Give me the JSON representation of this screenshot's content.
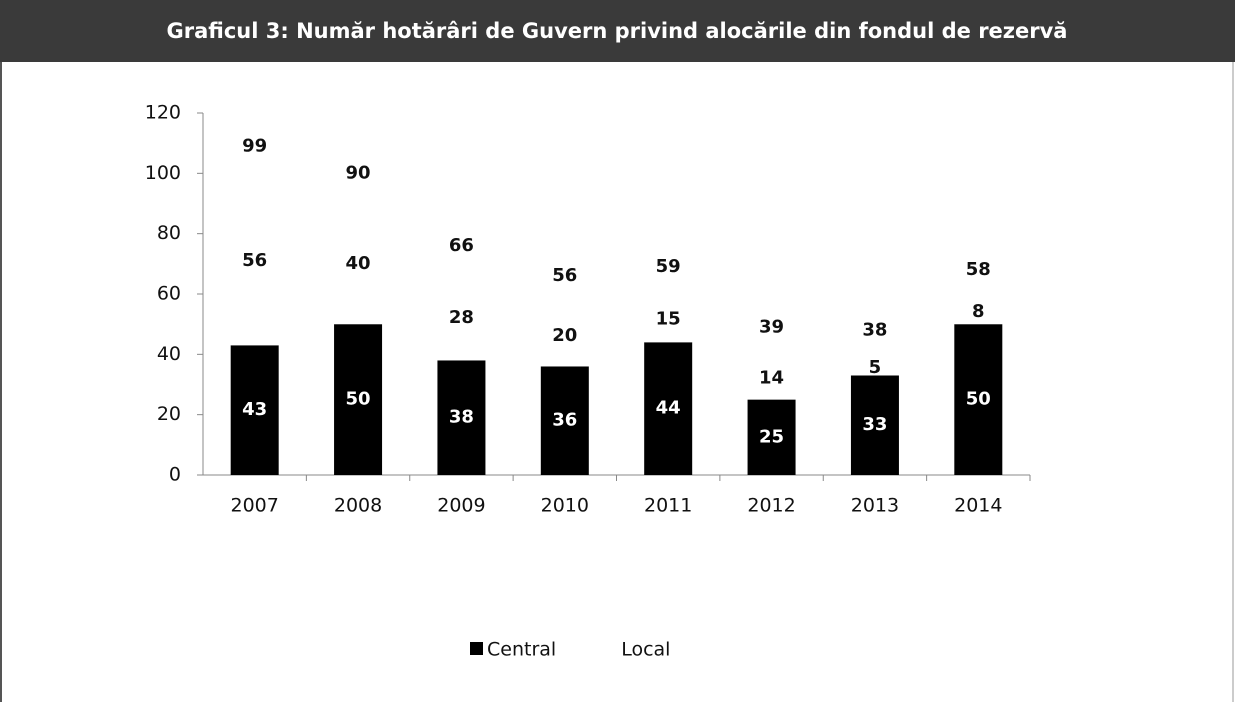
{
  "chart_data": {
    "type": "bar",
    "stacked": true,
    "title": "Graficul 3: Număr hotărâri de Guvern privind alocările din fondul de rezervă",
    "categories": [
      "2007",
      "2008",
      "2009",
      "2010",
      "2011",
      "2012",
      "2013",
      "2014"
    ],
    "series": [
      {
        "name": "Central",
        "color": "#000000",
        "values": [
          43,
          50,
          38,
          36,
          44,
          25,
          33,
          50
        ]
      },
      {
        "name": "Local",
        "color": "#ffffff",
        "values": [
          56,
          40,
          28,
          20,
          15,
          14,
          5,
          8
        ]
      }
    ],
    "totals": [
      99,
      90,
      66,
      56,
      59,
      39,
      38,
      58
    ],
    "ylim": [
      0,
      120
    ],
    "yticks": [
      0,
      20,
      40,
      60,
      80,
      100,
      120
    ],
    "legend": "bottom"
  }
}
